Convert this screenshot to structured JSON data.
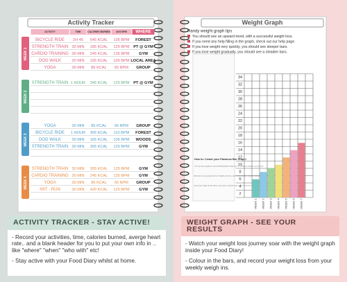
{
  "tracker": {
    "title": "Activity Tracker",
    "headers": [
      "ACTIVITY",
      "TIME",
      "CALORIES BURNED",
      "AVG BPM",
      "WHERE"
    ],
    "weeks": [
      {
        "label": "WEEK 1",
        "color": "#e0607e",
        "rows": [
          [
            "BICYCLE RIDE",
            "2H 45",
            "645 KCAL",
            "105 BPM",
            "FOREST"
          ],
          [
            "STRENGTH TRAIN",
            "30 MIN",
            "185 KCAL",
            "125 BPM",
            "PT @ GYM"
          ],
          [
            "CARDIO TRAINING",
            "30 MIN",
            "245 KCAL",
            "135 BPM",
            "GYM"
          ],
          [
            "DOG WALK",
            "30 MIN",
            "165 KCAL",
            "105 BPM",
            "LOCAL AREA"
          ],
          [
            "YOGA",
            "30 MIN",
            "85 KCAL",
            "65 BPM",
            "GROUP"
          ]
        ]
      },
      {
        "label": "WEEK 2",
        "color": "#5fae86",
        "rows": [
          [
            "STRENGTH TRAIN",
            "1 HOUR",
            "345 KCAL",
            "125 BPM",
            "PT @ GYM"
          ]
        ]
      },
      {
        "label": "WEEK 3",
        "color": "#4f9cc9",
        "rows": [
          [
            "YOGA",
            "30 MIN",
            "85 KCAL",
            "65 BPM",
            "GROUP"
          ],
          [
            "BICYCLE RIDE",
            "1 HOUR",
            "305 KCAL",
            "110 BPM",
            "FOREST"
          ],
          [
            "DOG WALK",
            "30 MIN",
            "165 KCAL",
            "105 BPM",
            "WOODS"
          ],
          [
            "STRENGTH TRAIN",
            "30 MIN",
            "305 KCAL",
            "125 BPM",
            "GYM"
          ]
        ]
      },
      {
        "label": "WEEK 4",
        "color": "#e88c45",
        "rows": [
          [
            "STRENGTH TRAIN",
            "30 MIN",
            "305 KCAL",
            "125 BPM",
            "GYM"
          ],
          [
            "CARDIO TRAINING",
            "30 MIN",
            "245 KCAL",
            "135 BPM",
            "GYM"
          ],
          [
            "YOGA",
            "30 MIN",
            "85 KCAL",
            "65 BPM",
            "GROUP"
          ],
          [
            "HIIT - RUN",
            "30 MIN",
            "420 KCAL",
            "120 BPM",
            "GYM"
          ]
        ]
      }
    ]
  },
  "graph": {
    "title": "Weight Graph",
    "tips_title": "Handy weight graph tips",
    "tips": [
      "You should see an upward trend, with a successful weight loss.",
      "If you need any help filling in the graph, check out our help page.",
      "If you lose weight very quickly, you should see steeper bars.",
      "If you lose weight gradually, you should see a steadier bars."
    ],
    "yticks": [
      2,
      4,
      6,
      8,
      10,
      12,
      14,
      16,
      18,
      20,
      22,
      24,
      26,
      28,
      30,
      32,
      34
    ],
    "categories": [
      "WEEK 1",
      "WEEK 2",
      "WEEK 3",
      "WEEK 4",
      "WEEK 5",
      "WEEK 6",
      "WEEK 7"
    ],
    "values": [
      5,
      7,
      8,
      9,
      11,
      13,
      15
    ],
    "colors": [
      "#6cc7c0",
      "#8cc8e8",
      "#9ed49a",
      "#f2e07a",
      "#f4b27a",
      "#f0a0c0",
      "#e87f8f"
    ],
    "howto_title": "How to: Create your Fabulous Bar Graph!",
    "howto": [
      "Once you have weighed in on your Weekly Weigh In Page, you can colour your fabulous self over here.",
      "Black lines on your graph represent multiples of two lbs, and the light pink lines represent individual lbs.",
      "As you lose weight, the bar will rise. If you have a maintain / gain week, then the bar can go down or stay the same."
    ]
  },
  "captions": [
    {
      "title": "ACTIVITY TRACKER - STAY ACTIVE!",
      "points": [
        "- Record your activities, time, calories burned, averge heart rate.. and a blank header for you to put your own info in .. like \"where\" \"when\" \"who with\" etc!",
        "- Stay active with your Food Diary whilst at home."
      ]
    },
    {
      "title": "WEIGHT GRAPH - SEE YOUR RESULTS",
      "points": [
        "- Watch your weight loss journey soar with the weight graph inside your Food Diary!",
        "- Colour in the bars, and record your weight loss from your weekly weigh ins."
      ]
    }
  ]
}
